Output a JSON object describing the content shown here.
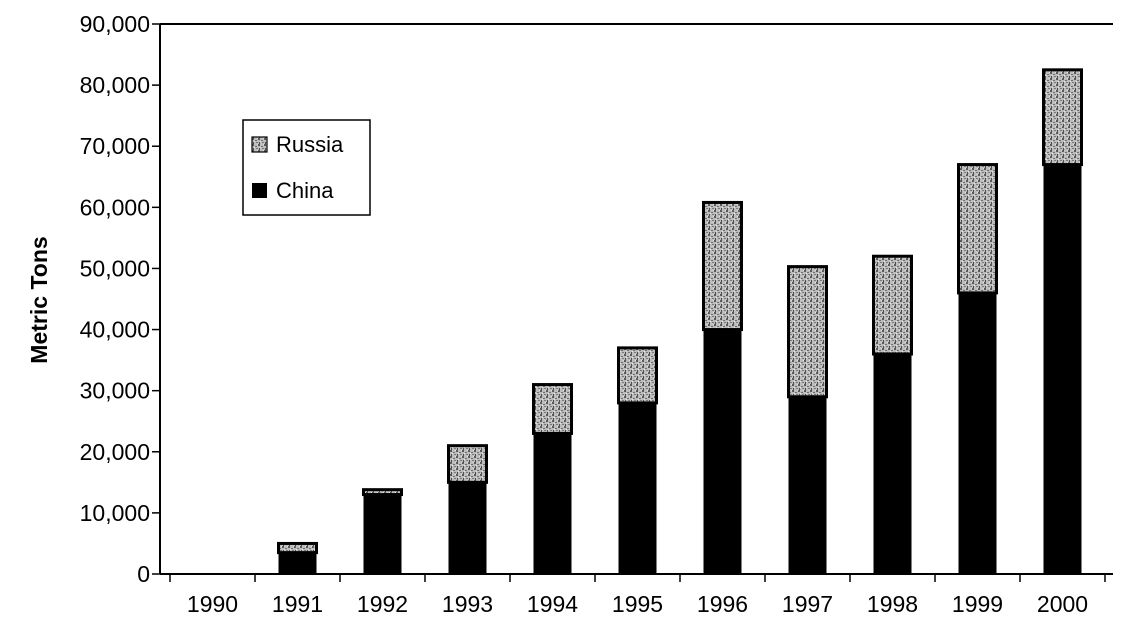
{
  "chart_data": {
    "type": "bar",
    "stacked": true,
    "title": "",
    "xlabel": "",
    "ylabel": "Metric Tons",
    "ylim": [
      0,
      90000
    ],
    "yticks": [
      "0",
      "10,000",
      "20,000",
      "30,000",
      "40,000",
      "50,000",
      "60,000",
      "70,000",
      "80,000",
      "90,000"
    ],
    "ytick_values": [
      0,
      10000,
      20000,
      30000,
      40000,
      50000,
      60000,
      70000,
      80000,
      90000
    ],
    "categories": [
      "1990",
      "1991",
      "1992",
      "1993",
      "1994",
      "1995",
      "1996",
      "1997",
      "1998",
      "1999",
      "2000"
    ],
    "series": [
      {
        "name": "China",
        "color": "#000000",
        "values": [
          0,
          3500,
          13000,
          15000,
          23000,
          28000,
          40000,
          29000,
          36000,
          46000,
          67000
        ]
      },
      {
        "name": "Russia",
        "color": "#9a9a9a",
        "values": [
          0,
          1500,
          800,
          6000,
          8000,
          9000,
          20800,
          21300,
          16000,
          21000,
          15500
        ]
      }
    ],
    "legend": {
      "position": "top-left",
      "entries": [
        "Russia",
        "China"
      ]
    },
    "grid": false
  }
}
